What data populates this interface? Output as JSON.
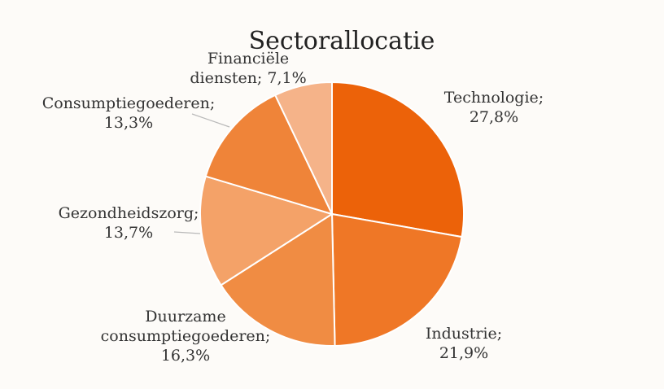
{
  "chart_data": {
    "type": "pie",
    "title": "Sectorallocatie",
    "slices": [
      {
        "label": "Technologie",
        "value": 27.8,
        "display": "27,8%",
        "color": "#ec6209"
      },
      {
        "label": "Industrie",
        "value": 21.9,
        "display": "21,9%",
        "color": "#ef7726"
      },
      {
        "label": "Duurzame consumptiegoederen",
        "value": 16.3,
        "display": "16,3%",
        "color": "#f08c43"
      },
      {
        "label": "Gezondheidszorg",
        "value": 13.7,
        "display": "13,7%",
        "color": "#f4a268"
      },
      {
        "label": "Consumptiegoederen",
        "value": 13.3,
        "display": "13,3%",
        "color": "#ef8439"
      },
      {
        "label": "Financiële diensten",
        "value": 7.1,
        "display": "7,1%",
        "color": "#f5b389"
      }
    ],
    "label_lines": [
      [
        "Technologie;",
        "27,8%"
      ],
      [
        "Industrie;",
        "21,9%"
      ],
      [
        "Duurzame",
        "consumptiegoederen;",
        "16,3%"
      ],
      [
        "Gezondheidszorg;",
        "13,7%"
      ],
      [
        "Consumptiegoederen;",
        "13,3%"
      ],
      [
        "Financiële",
        "diensten; 7,1%"
      ]
    ],
    "start_angle_deg": 0,
    "direction": "clockwise",
    "legend": "none"
  }
}
